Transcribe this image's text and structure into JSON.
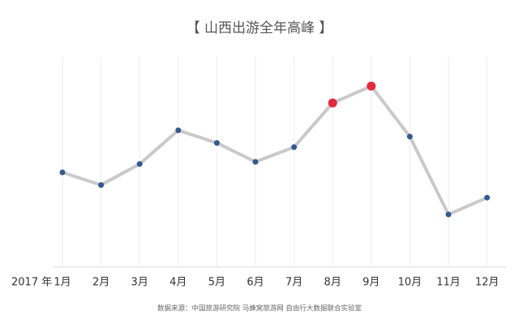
{
  "chart_data": {
    "type": "line",
    "title": "【 山西出游全年高峰 】",
    "x_label": "2017 年",
    "source": "数据来源：中国旅游研究院 马蜂窝旅游网 自由行大数据联合实验室",
    "categories": [
      "1月",
      "2月",
      "3月",
      "4月",
      "5月",
      "6月",
      "7月",
      "8月",
      "9月",
      "10月",
      "11月",
      "12月"
    ],
    "values": [
      45,
      39,
      49,
      65,
      59,
      50,
      57,
      78,
      86,
      62,
      25,
      33
    ],
    "color": "#c9c9c9",
    "point_colors": [
      "#35598e",
      "#35598e",
      "#35598e",
      "#35598e",
      "#35598e",
      "#35598e",
      "#35598e",
      "#e12a3c",
      "#e12a3c",
      "#35598e",
      "#35598e",
      "#35598e"
    ],
    "ylim": [
      0,
      100
    ],
    "grid": true
  }
}
